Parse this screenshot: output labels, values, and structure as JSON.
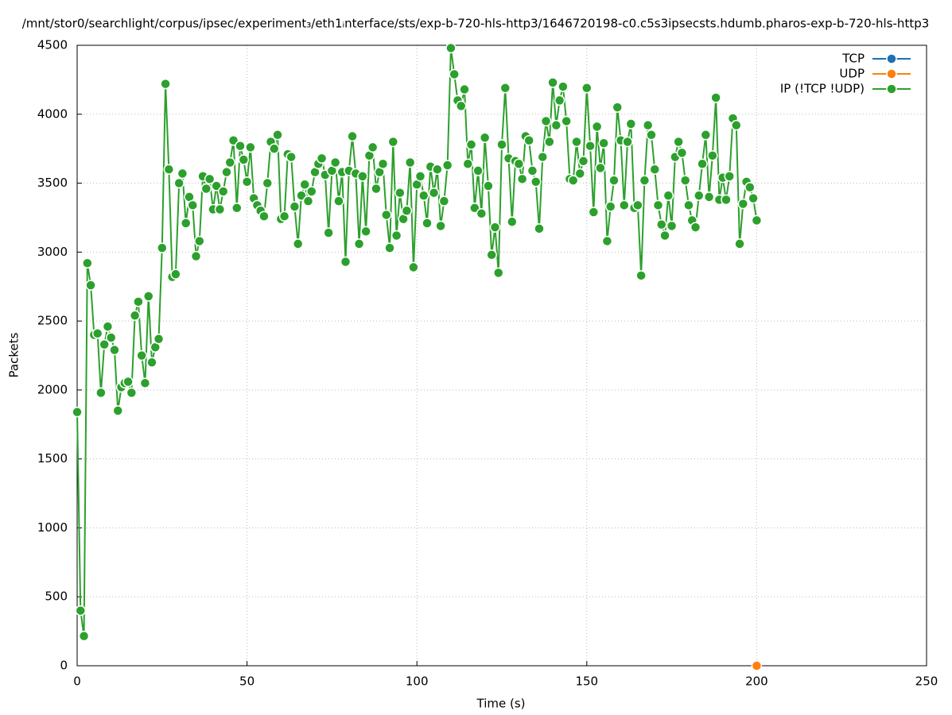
{
  "chart_data": {
    "type": "line",
    "title": "/mnt/stor0/searchlight/corpus/ipsec/experiment₃/eth1ᵢnterface/sts/exp-b-720-hls-http3/1646720198-c0.c5s3ipsecsts.hdumb.pharos-exp-b-720-hls-http3",
    "xlabel": "Time (s)",
    "ylabel": "Packets",
    "xlim": [
      0,
      250
    ],
    "xticks": [
      0,
      50,
      100,
      150,
      200,
      250
    ],
    "ylim": [
      0,
      4500
    ],
    "yticks": [
      0,
      500,
      1000,
      1500,
      2000,
      2500,
      3000,
      3500,
      4000,
      4500
    ],
    "grid": true,
    "legend": "top-right",
    "series": [
      {
        "name": "TCP",
        "color": "#1f6fb4",
        "x": [],
        "values": []
      },
      {
        "name": "UDP",
        "color": "#ff7f0e",
        "x": [
          200
        ],
        "values": [
          0
        ]
      },
      {
        "name": "IP (!TCP  !UDP)",
        "color": "#2ca02c",
        "x": [
          0,
          1,
          2,
          3,
          4,
          5,
          6,
          7,
          8,
          9,
          10,
          11,
          12,
          13,
          14,
          15,
          16,
          17,
          18,
          19,
          20,
          21,
          22,
          23,
          24,
          25,
          26,
          27,
          28,
          29,
          30,
          31,
          32,
          33,
          34,
          35,
          36,
          37,
          38,
          39,
          40,
          41,
          42,
          43,
          44,
          45,
          46,
          47,
          48,
          49,
          50,
          51,
          52,
          53,
          54,
          55,
          56,
          57,
          58,
          59,
          60,
          61,
          62,
          63,
          64,
          65,
          66,
          67,
          68,
          69,
          70,
          71,
          72,
          73,
          74,
          75,
          76,
          77,
          78,
          79,
          80,
          81,
          82,
          83,
          84,
          85,
          86,
          87,
          88,
          89,
          90,
          91,
          92,
          93,
          94,
          95,
          96,
          97,
          98,
          99,
          100,
          101,
          102,
          103,
          104,
          105,
          106,
          107,
          108,
          109,
          110,
          111,
          112,
          113,
          114,
          115,
          116,
          117,
          118,
          119,
          120,
          121,
          122,
          123,
          124,
          125,
          126,
          127,
          128,
          129,
          130,
          131,
          132,
          133,
          134,
          135,
          136,
          137,
          138,
          139,
          140,
          141,
          142,
          143,
          144,
          145,
          146,
          147,
          148,
          149,
          150,
          151,
          152,
          153,
          154,
          155,
          156,
          157,
          158,
          159,
          160,
          161,
          162,
          163,
          164,
          165,
          166,
          167,
          168,
          169,
          170,
          171,
          172,
          173,
          174,
          175,
          176,
          177,
          178,
          179,
          180,
          181,
          182,
          183,
          184,
          185,
          186,
          187,
          188,
          189,
          190,
          191,
          192,
          193,
          194,
          195,
          196,
          197,
          198,
          199,
          200
        ],
        "values": [
          1840,
          400,
          215,
          2920,
          2760,
          2400,
          2410,
          1980,
          2330,
          2460,
          2380,
          2290,
          1850,
          2020,
          2050,
          2060,
          1980,
          2540,
          2640,
          2250,
          2050,
          2680,
          2200,
          2310,
          2370,
          3030,
          4220,
          3600,
          2820,
          2840,
          3500,
          3570,
          3210,
          3400,
          3340,
          2970,
          3080,
          3550,
          3460,
          3530,
          3310,
          3480,
          3310,
          3440,
          3580,
          3650,
          3810,
          3320,
          3770,
          3670,
          3510,
          3760,
          3390,
          3340,
          3300,
          3260,
          3500,
          3800,
          3750,
          3850,
          3240,
          3260,
          3710,
          3690,
          3330,
          3060,
          3410,
          3490,
          3370,
          3440,
          3580,
          3640,
          3680,
          3560,
          3140,
          3590,
          3650,
          3370,
          3580,
          2930,
          3590,
          3840,
          3570,
          3060,
          3550,
          3150,
          3700,
          3760,
          3460,
          3580,
          3640,
          3270,
          3030,
          3800,
          3120,
          3430,
          3240,
          3300,
          3650,
          2890,
          3490,
          3550,
          3410,
          3210,
          3620,
          3430,
          3600,
          3190,
          3370,
          3630,
          4480,
          4290,
          4100,
          4060,
          4180,
          3640,
          3780,
          3320,
          3590,
          3280,
          3830,
          3480,
          2980,
          3180,
          2850,
          3780,
          4190,
          3680,
          3220,
          3660,
          3640,
          3530,
          3840,
          3810,
          3590,
          3510,
          3170,
          3690,
          3950,
          3800,
          4230,
          3920,
          4100,
          4200,
          3950,
          3530,
          3520,
          3800,
          3570,
          3660,
          4190,
          3770,
          3290,
          3910,
          3610,
          3790,
          3080,
          3330,
          3520,
          4050,
          3810,
          3340,
          3800,
          3930,
          3320,
          3340,
          2830,
          3520,
          3920,
          3850,
          3600,
          3340,
          3200,
          3120,
          3410,
          3190,
          3690,
          3800,
          3720,
          3520,
          3340,
          3230,
          3180,
          3410,
          3640,
          3850,
          3400,
          3700,
          4120,
          3380,
          3540,
          3380,
          3550,
          3970,
          3920,
          3060,
          3350,
          3510,
          3470,
          3390,
          3230
        ]
      }
    ]
  }
}
